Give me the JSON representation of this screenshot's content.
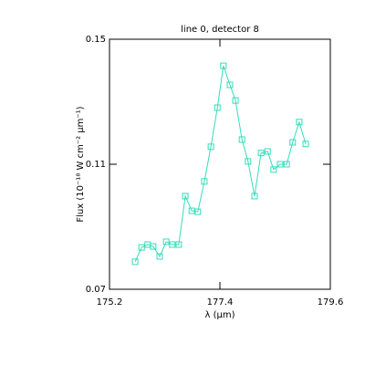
{
  "chart_data": {
    "type": "line",
    "title": "line 0, detector 8",
    "xlabel": "λ (μm)",
    "ylabel": "Flux (10⁻¹⁸ W cm⁻² μm⁻¹)",
    "x": [
      175.71,
      175.84,
      175.96,
      176.07,
      176.2,
      176.33,
      176.45,
      176.58,
      176.71,
      176.84,
      176.96,
      177.09,
      177.22,
      177.35,
      177.47,
      177.6,
      177.71,
      177.84,
      177.96,
      178.09,
      178.22,
      178.35,
      178.47,
      178.6,
      178.73,
      178.85,
      178.98,
      179.11
    ],
    "series": [
      {
        "color": "#33ddbb",
        "values": [
          0.0788,
          0.0834,
          0.0843,
          0.0837,
          0.0805,
          0.0852,
          0.0843,
          0.0843,
          0.0998,
          0.0951,
          0.0948,
          0.1045,
          0.1156,
          0.1281,
          0.1415,
          0.1354,
          0.1304,
          0.1179,
          0.1109,
          0.0998,
          0.1136,
          0.1141,
          0.1083,
          0.11,
          0.11,
          0.117,
          0.1235,
          0.1165
        ]
      }
    ],
    "xlim": [
      175.2,
      179.6
    ],
    "xticks": [
      175.2,
      177.4,
      179.6
    ],
    "ylim": [
      0.07,
      0.15
    ],
    "yticks": [
      0.07,
      0.11,
      0.15
    ],
    "marker": "square"
  }
}
